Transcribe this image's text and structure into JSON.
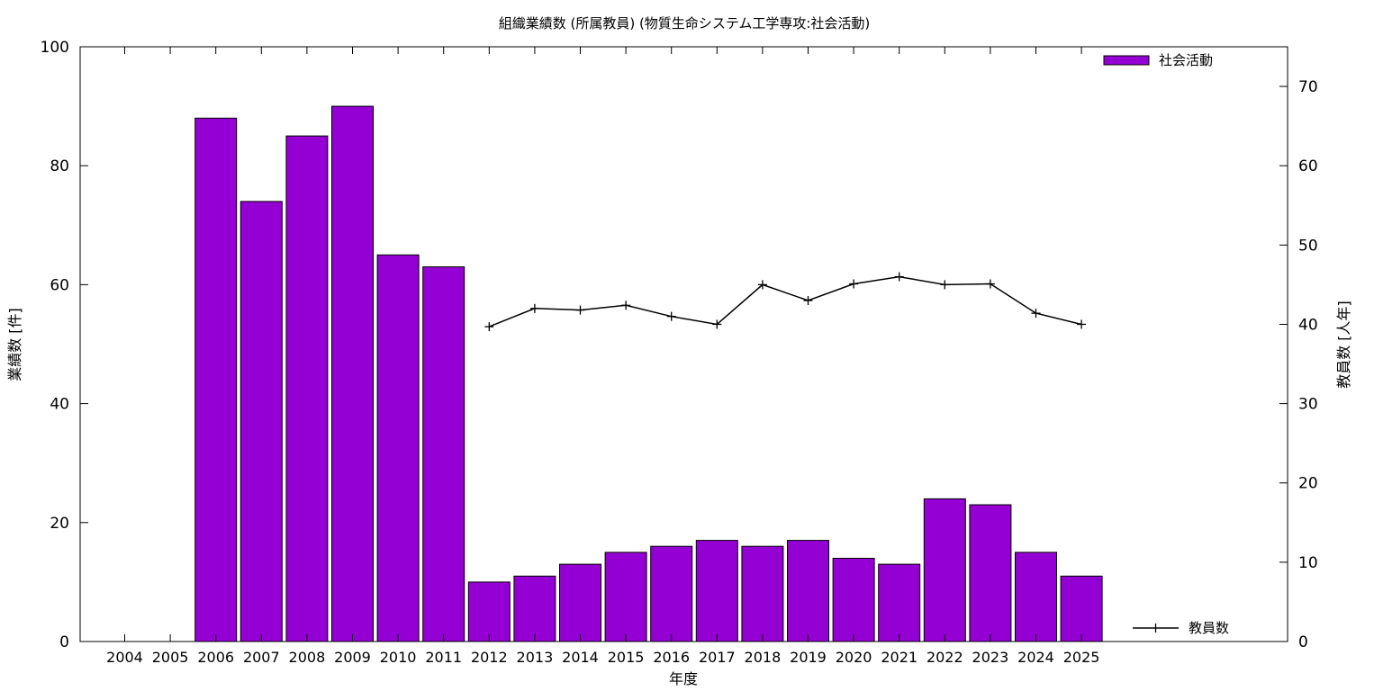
{
  "chart_data": {
    "type": "bar",
    "title": "組織業績数 (所属教員) (物質生命システム工学専攻:社会活動)",
    "xlabel": "年度",
    "ylabel": "業績数 [件]",
    "y2label": "教員数 [人年]",
    "ylim": [
      0,
      100
    ],
    "y2lim": [
      0,
      75
    ],
    "yticks": [
      0,
      20,
      40,
      60,
      80,
      100
    ],
    "y2ticks": [
      0,
      10,
      20,
      30,
      40,
      50,
      60,
      70
    ],
    "categories": [
      "2004",
      "2005",
      "2006",
      "2007",
      "2008",
      "2009",
      "2010",
      "2011",
      "2012",
      "2013",
      "2014",
      "2015",
      "2016",
      "2017",
      "2018",
      "2019",
      "2020",
      "2021",
      "2022",
      "2023",
      "2024",
      "2025"
    ],
    "series": [
      {
        "name": "社会活動",
        "type": "bar",
        "axis": "left",
        "color": "#9400d3",
        "values": [
          null,
          null,
          88,
          74,
          85,
          90,
          65,
          63,
          10,
          11,
          13,
          15,
          16,
          17,
          16,
          17,
          14,
          13,
          24,
          23,
          15,
          11
        ]
      },
      {
        "name": "教員数",
        "type": "line",
        "axis": "right",
        "color": "#000000",
        "values": [
          null,
          null,
          null,
          null,
          null,
          null,
          null,
          null,
          39.7,
          42.0,
          41.8,
          42.4,
          41.0,
          40.0,
          45.0,
          43.0,
          45.1,
          46.0,
          45.0,
          45.1,
          41.4,
          40.0
        ]
      }
    ],
    "legend": [
      {
        "name": "社会活動",
        "placement": "top-right",
        "marker": "bar"
      },
      {
        "name": "教員数",
        "placement": "bottom-right",
        "marker": "line"
      }
    ]
  }
}
